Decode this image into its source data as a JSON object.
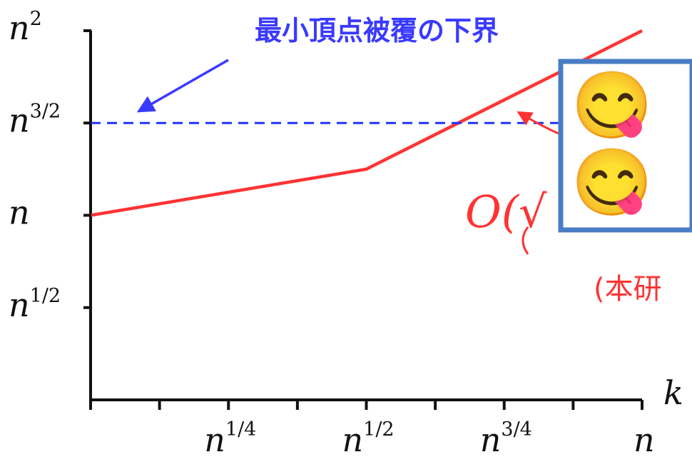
{
  "chart_data": {
    "type": "line",
    "title": "",
    "xlabel": "k",
    "ylabel": "",
    "x_scale": "log_n_exponent",
    "y_scale": "log_n_exponent",
    "xlim": [
      0,
      1
    ],
    "ylim": [
      0,
      2
    ],
    "x_ticks": [
      0.25,
      0.5,
      0.75,
      1.0
    ],
    "x_tick_labels": [
      {
        "base": "n",
        "exp": "1/4"
      },
      {
        "base": "n",
        "exp": "1/2"
      },
      {
        "base": "n",
        "exp": "3/4"
      },
      {
        "base": "n",
        "exp": ""
      }
    ],
    "x_minor_ticks": [
      0.125,
      0.375,
      0.625,
      0.875
    ],
    "y_ticks": [
      0.5,
      1.0,
      1.5,
      2.0
    ],
    "y_tick_labels": [
      {
        "base": "n",
        "exp": "1/2"
      },
      {
        "base": "n",
        "exp": ""
      },
      {
        "base": "n",
        "exp": "3/2"
      },
      {
        "base": "n",
        "exp": "2"
      }
    ],
    "series": [
      {
        "color": "#ff3333",
        "style": "solid",
        "points": [
          [
            0,
            1.0
          ],
          [
            0.5,
            1.25
          ],
          [
            1.0,
            2.0
          ]
        ]
      },
      {
        "color": "#2233ff",
        "style": "dashed",
        "points": [
          [
            0,
            1.5
          ],
          [
            1.0,
            1.5
          ]
        ]
      }
    ],
    "annotations": {
      "lower_bound_label": "最小頂点被覆の下界",
      "lower_bound_color": "#3a3aff",
      "formula_partial": "O(√",
      "this_work_partial": "(本研",
      "formula_color": "#ff3333"
    },
    "overlay": {
      "border_color": "#4a7cc4",
      "emoji": "😋",
      "icon_name": "face-savoring-food-icon"
    }
  }
}
